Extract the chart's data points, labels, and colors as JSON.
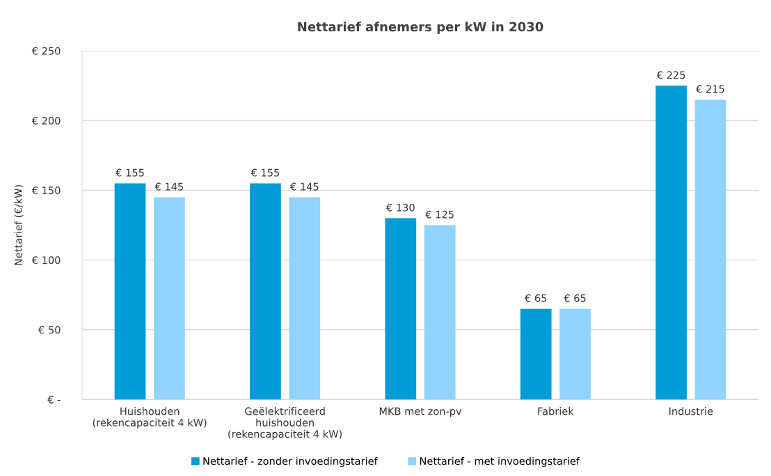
{
  "chart_data": {
    "type": "bar",
    "title": "Nettarief afnemers per kW in 2030",
    "ylabel": "Nettarief (€/kW)",
    "categories": [
      "Huishouden\n(rekencapaciteit 4 kW)",
      "Geëlektrificeerd\nhuishouden\n(rekencapaciteit 4 kW)",
      "MKB met zon-pv",
      "Fabriek",
      "Industrie"
    ],
    "series": [
      {
        "name": "Nettarief - zonder invoedingstarief",
        "color": "#009bd9",
        "values": [
          155,
          155,
          130,
          65,
          225
        ],
        "value_labels": [
          "€ 155",
          "€ 155",
          "€ 130",
          "€ 65",
          "€ 225"
        ]
      },
      {
        "name": "Nettarief - met invoedingstarief",
        "color": "#8fd3fe",
        "values": [
          145,
          145,
          125,
          65,
          215
        ],
        "value_labels": [
          "€ 145",
          "€ 145",
          "€ 125",
          "€ 65",
          "€ 215"
        ]
      }
    ],
    "ylim": [
      0,
      250
    ],
    "yticks": [
      {
        "value": 0,
        "label": "€ -"
      },
      {
        "value": 50,
        "label": "€ 50"
      },
      {
        "value": 100,
        "label": "€ 100"
      },
      {
        "value": 150,
        "label": "€ 150"
      },
      {
        "value": 200,
        "label": "€ 200"
      },
      {
        "value": 250,
        "label": "€ 250"
      }
    ],
    "grid": "y",
    "legend": "bottom"
  }
}
